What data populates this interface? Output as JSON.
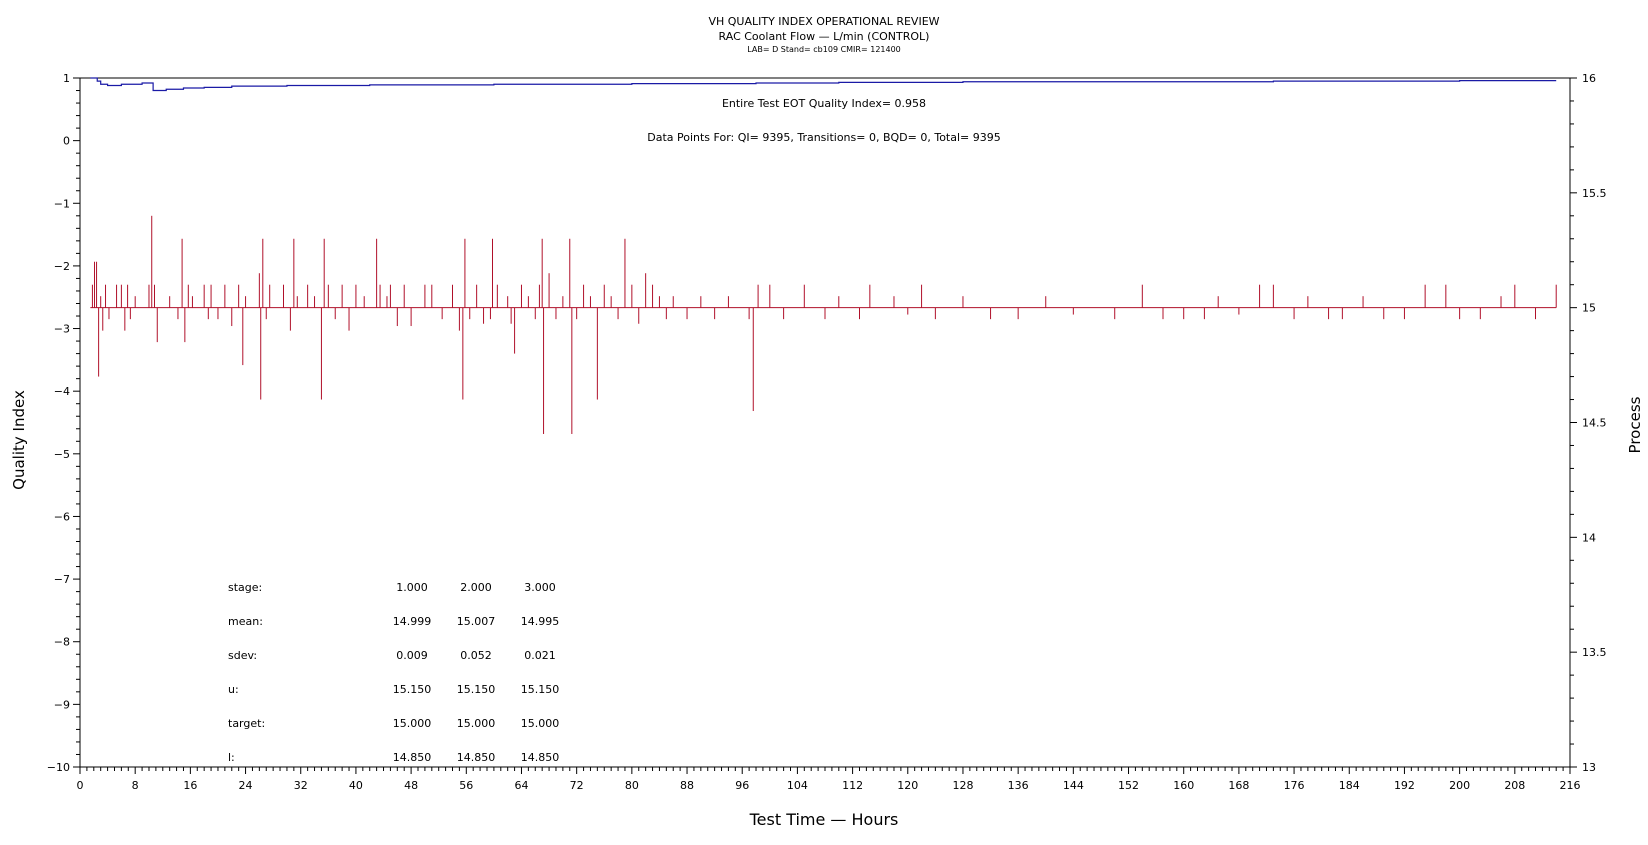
{
  "titles": {
    "line1": "VH QUALITY INDEX OPERATIONAL REVIEW",
    "line2": "RAC Coolant Flow — L/min (CONTROL)",
    "line3": "LAB= D Stand= cb109 CMIR= 121400"
  },
  "annotations": {
    "eot_qi": "Entire Test EOT Quality Index=   0.958",
    "data_points": "Data Points For: QI=  9395, Transitions=     0, BQD=     0, Total=  9395"
  },
  "stats": {
    "rows": [
      {
        "label": "stage:",
        "values": [
          "1.000",
          "2.000",
          "3.000"
        ]
      },
      {
        "label": "mean:",
        "values": [
          "14.999",
          "15.007",
          "14.995"
        ]
      },
      {
        "label": "sdev:",
        "values": [
          "0.009",
          "0.052",
          "0.021"
        ]
      },
      {
        "label": "u:",
        "values": [
          "15.150",
          "15.150",
          "15.150"
        ]
      },
      {
        "label": "target:",
        "values": [
          "15.000",
          "15.000",
          "15.000"
        ]
      },
      {
        "label": "l:",
        "values": [
          "14.850",
          "14.850",
          "14.850"
        ]
      }
    ]
  },
  "colors": {
    "qi_line": "#1a1aa6",
    "process_line": "#b0102a",
    "axis": "#000000"
  },
  "chart_data": {
    "type": "line",
    "xlabel": "Test Time — Hours",
    "ylabel": "Quality Index",
    "y2label": "Process",
    "xlim": [
      0,
      216
    ],
    "ylim": [
      -10,
      1
    ],
    "y2lim": [
      13,
      16
    ],
    "x_ticks": [
      0,
      8,
      16,
      24,
      32,
      40,
      48,
      56,
      64,
      72,
      80,
      88,
      96,
      104,
      112,
      120,
      128,
      136,
      144,
      152,
      160,
      168,
      176,
      184,
      192,
      200,
      208,
      216
    ],
    "y_ticks": [
      1,
      0,
      -1,
      -2,
      -3,
      -4,
      -5,
      -6,
      -7,
      -8,
      -9,
      -10
    ],
    "y2_ticks": [
      16,
      15.5,
      15,
      14.5,
      14,
      13.5,
      13
    ],
    "y2_tick_labels": [
      "16",
      "15.5",
      "15",
      "14.5",
      "14",
      "13.5",
      "13"
    ],
    "grid": false,
    "series": [
      {
        "axis": "left",
        "x": [
          1.5,
          2.5,
          3.0,
          4.0,
          6.0,
          9.0,
          10.5,
          10.6,
          12.5,
          15,
          18,
          22,
          30,
          36,
          42,
          48,
          60,
          80,
          98,
          100,
          110,
          128,
          150,
          173,
          180,
          200,
          214
        ],
        "y": [
          1.0,
          0.95,
          0.9,
          0.88,
          0.9,
          0.92,
          0.92,
          0.8,
          0.82,
          0.84,
          0.85,
          0.87,
          0.88,
          0.88,
          0.89,
          0.89,
          0.9,
          0.91,
          0.92,
          0.92,
          0.93,
          0.94,
          0.94,
          0.95,
          0.95,
          0.958,
          0.958
        ]
      },
      {
        "axis": "right",
        "baseline": 15.0,
        "spikes": [
          [
            1.8,
            15.1
          ],
          [
            2.1,
            15.2
          ],
          [
            2.4,
            15.2
          ],
          [
            2.7,
            14.7
          ],
          [
            3.0,
            15.05
          ],
          [
            3.3,
            14.9
          ],
          [
            3.7,
            15.1
          ],
          [
            4.2,
            14.95
          ],
          [
            5.3,
            15.1
          ],
          [
            6.0,
            15.1
          ],
          [
            6.5,
            14.9
          ],
          [
            6.9,
            15.1
          ],
          [
            7.3,
            14.95
          ],
          [
            8.0,
            15.05
          ],
          [
            10.0,
            15.1
          ],
          [
            10.4,
            15.4
          ],
          [
            10.8,
            15.1
          ],
          [
            11.2,
            14.85
          ],
          [
            13.0,
            15.05
          ],
          [
            14.2,
            14.95
          ],
          [
            14.8,
            15.3
          ],
          [
            15.2,
            14.85
          ],
          [
            15.7,
            15.1
          ],
          [
            16.3,
            15.05
          ],
          [
            18.0,
            15.1
          ],
          [
            18.6,
            14.95
          ],
          [
            19.0,
            15.1
          ],
          [
            20.0,
            14.95
          ],
          [
            21.0,
            15.1
          ],
          [
            22.0,
            14.92
          ],
          [
            23.0,
            15.1
          ],
          [
            23.6,
            14.75
          ],
          [
            24.0,
            15.05
          ],
          [
            26.0,
            15.15
          ],
          [
            26.2,
            14.6
          ],
          [
            26.5,
            15.3
          ],
          [
            27.0,
            14.95
          ],
          [
            27.5,
            15.1
          ],
          [
            28.5,
            15.0
          ],
          [
            29.5,
            15.1
          ],
          [
            30.5,
            14.9
          ],
          [
            31.0,
            15.3
          ],
          [
            31.5,
            15.05
          ],
          [
            33.0,
            15.1
          ],
          [
            34.0,
            15.05
          ],
          [
            35.0,
            14.6
          ],
          [
            35.4,
            15.3
          ],
          [
            36.0,
            15.1
          ],
          [
            37.0,
            14.95
          ],
          [
            38.0,
            15.1
          ],
          [
            39.0,
            14.9
          ],
          [
            40.0,
            15.1
          ],
          [
            41.2,
            15.05
          ],
          [
            43.0,
            15.3
          ],
          [
            43.5,
            15.1
          ],
          [
            44.5,
            15.05
          ],
          [
            45.0,
            15.1
          ],
          [
            46.0,
            14.92
          ],
          [
            47.0,
            15.1
          ],
          [
            48.0,
            14.92
          ],
          [
            50.0,
            15.1
          ],
          [
            51.0,
            15.1
          ],
          [
            52.5,
            14.95
          ],
          [
            54.0,
            15.1
          ],
          [
            55.0,
            14.9
          ],
          [
            55.5,
            14.6
          ],
          [
            55.8,
            15.3
          ],
          [
            56.5,
            14.95
          ],
          [
            57.5,
            15.1
          ],
          [
            58.5,
            14.93
          ],
          [
            59.5,
            14.95
          ],
          [
            59.8,
            15.3
          ],
          [
            60.5,
            15.1
          ],
          [
            62.0,
            15.05
          ],
          [
            62.5,
            14.93
          ],
          [
            63.0,
            14.8
          ],
          [
            64.0,
            15.1
          ],
          [
            65.0,
            15.05
          ],
          [
            66.0,
            14.95
          ],
          [
            66.6,
            15.1
          ],
          [
            67.0,
            15.3
          ],
          [
            67.2,
            14.45
          ],
          [
            68.0,
            15.15
          ],
          [
            69.0,
            14.95
          ],
          [
            70.0,
            15.05
          ],
          [
            71.0,
            15.3
          ],
          [
            71.3,
            14.45
          ],
          [
            72.0,
            14.95
          ],
          [
            73.0,
            15.1
          ],
          [
            74.0,
            15.05
          ],
          [
            75.0,
            14.6
          ],
          [
            76.0,
            15.1
          ],
          [
            77.0,
            15.05
          ],
          [
            78.0,
            14.95
          ],
          [
            79.0,
            15.3
          ],
          [
            80.0,
            15.1
          ],
          [
            81.0,
            14.93
          ],
          [
            82.0,
            15.15
          ],
          [
            83.0,
            15.1
          ],
          [
            84.0,
            15.05
          ],
          [
            85.0,
            14.95
          ],
          [
            86.0,
            15.05
          ],
          [
            88.0,
            14.95
          ],
          [
            90.0,
            15.05
          ],
          [
            92.0,
            14.95
          ],
          [
            94.0,
            15.05
          ],
          [
            97.0,
            14.95
          ],
          [
            97.6,
            14.55
          ],
          [
            98.3,
            15.1
          ],
          [
            100.0,
            15.1
          ],
          [
            102.0,
            14.95
          ],
          [
            105.0,
            15.1
          ],
          [
            108.0,
            14.95
          ],
          [
            110.0,
            15.05
          ],
          [
            113.0,
            14.95
          ],
          [
            114.5,
            15.1
          ],
          [
            118.0,
            15.05
          ],
          [
            120.0,
            14.97
          ],
          [
            122.0,
            15.1
          ],
          [
            124.0,
            14.95
          ],
          [
            128.0,
            15.05
          ],
          [
            132.0,
            14.95
          ],
          [
            136.0,
            14.95
          ],
          [
            140.0,
            15.05
          ],
          [
            144.0,
            14.97
          ],
          [
            150.0,
            14.95
          ],
          [
            154.0,
            15.1
          ],
          [
            157.0,
            14.95
          ],
          [
            160.0,
            14.95
          ],
          [
            163.0,
            14.95
          ],
          [
            165.0,
            15.05
          ],
          [
            168.0,
            14.97
          ],
          [
            171.0,
            15.1
          ],
          [
            173.0,
            15.1
          ],
          [
            176.0,
            14.95
          ],
          [
            178.0,
            15.05
          ],
          [
            181.0,
            14.95
          ],
          [
            183.0,
            14.95
          ],
          [
            186.0,
            15.05
          ],
          [
            189.0,
            14.95
          ],
          [
            192.0,
            14.95
          ],
          [
            195.0,
            15.1
          ],
          [
            198.0,
            15.1
          ],
          [
            200.0,
            14.95
          ],
          [
            203.0,
            14.95
          ],
          [
            206.0,
            15.05
          ],
          [
            208.0,
            15.1
          ],
          [
            211.0,
            14.95
          ],
          [
            214.0,
            15.1
          ]
        ]
      }
    ]
  }
}
